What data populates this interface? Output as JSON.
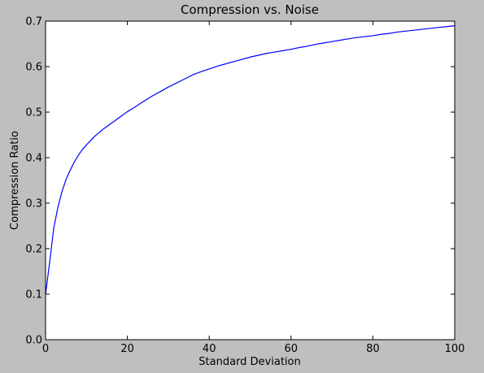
{
  "chart_data": {
    "type": "line",
    "title": "Compression vs. Noise",
    "xlabel": "Standard Deviation",
    "ylabel": "Compression Ratio",
    "xlim": [
      0,
      100
    ],
    "ylim": [
      0,
      0.7
    ],
    "xticks": [
      0,
      20,
      40,
      60,
      80,
      100
    ],
    "xtick_labels": [
      "0",
      "20",
      "40",
      "60",
      "80",
      "100"
    ],
    "yticks": [
      0.0,
      0.1,
      0.2,
      0.3,
      0.4,
      0.5,
      0.6,
      0.7
    ],
    "ytick_labels": [
      "0.0",
      "0.1",
      "0.2",
      "0.3",
      "0.4",
      "0.5",
      "0.6",
      "0.7"
    ],
    "grid": false,
    "legend": "none",
    "series": [
      {
        "name": "compression ratio",
        "color": "#0000ff",
        "x": [
          0,
          1,
          2,
          3,
          4,
          5,
          6,
          7,
          8,
          9,
          10,
          12,
          14,
          16,
          18,
          20,
          22,
          24,
          26,
          28,
          30,
          32,
          34,
          36,
          38,
          40,
          42,
          44,
          46,
          48,
          50,
          52,
          54,
          56,
          58,
          60,
          62,
          64,
          66,
          68,
          70,
          72,
          74,
          76,
          78,
          80,
          82,
          84,
          86,
          88,
          90,
          92,
          94,
          96,
          98,
          100
        ],
        "y": [
          0.1,
          0.17,
          0.245,
          0.29,
          0.325,
          0.352,
          0.372,
          0.39,
          0.405,
          0.418,
          0.428,
          0.447,
          0.462,
          0.475,
          0.488,
          0.501,
          0.512,
          0.524,
          0.535,
          0.545,
          0.555,
          0.564,
          0.573,
          0.582,
          0.589,
          0.595,
          0.601,
          0.606,
          0.611,
          0.616,
          0.621,
          0.625,
          0.629,
          0.632,
          0.635,
          0.638,
          0.642,
          0.645,
          0.649,
          0.652,
          0.655,
          0.658,
          0.661,
          0.664,
          0.666,
          0.668,
          0.671,
          0.673,
          0.676,
          0.678,
          0.68,
          0.682,
          0.684,
          0.686,
          0.688,
          0.69
        ]
      }
    ]
  }
}
